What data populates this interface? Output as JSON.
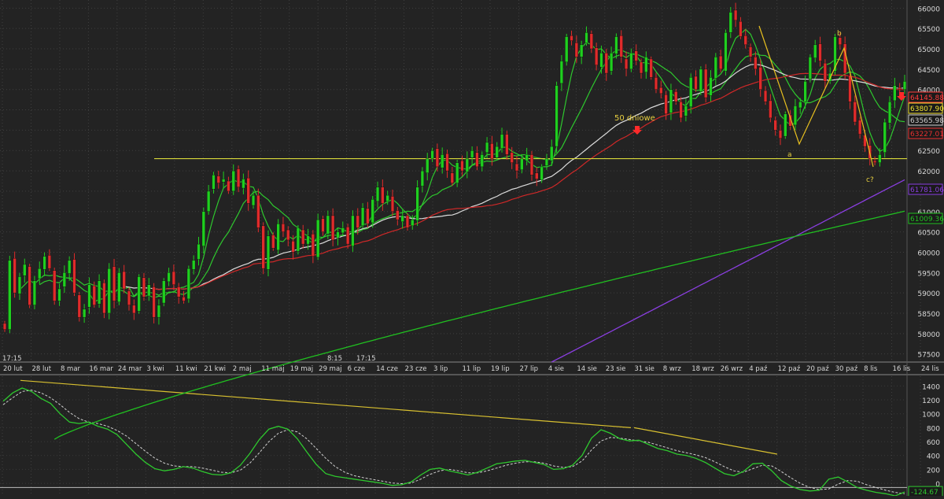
{
  "chart_data": [
    {
      "type": "candlestick",
      "price_axis": {
        "ticks": [
          57500,
          58000,
          58500,
          59000,
          59500,
          60000,
          60500,
          61000,
          61500,
          62000,
          62500,
          63000,
          63500,
          64000,
          64500,
          65000,
          65500,
          66000
        ],
        "ylim": [
          57300,
          66200
        ]
      },
      "date_labels": [
        "20 lut",
        "28 lut",
        "8 mar",
        "16 mar",
        "24 mar",
        "3 kwi",
        "11 kwi",
        "21 kwi",
        "2 maj",
        "11 maj",
        "19 maj",
        "29 maj",
        "6 cze",
        "14 cze",
        "23 cze",
        "3 lip",
        "11 lip",
        "19 lip",
        "27 lip",
        "4 sie",
        "14 sie",
        "23 sie",
        "31 sie",
        "8 wrz",
        "18 wrz",
        "26 wrz",
        "4 paź",
        "12 paź",
        "20 paź",
        "30 paź",
        "8 lis",
        "16 lis",
        "24 lis"
      ],
      "time_labels": [
        "17:15",
        "8:15",
        "17:15"
      ],
      "support_level": 62300,
      "close_series": [
        58100,
        59800,
        59000,
        59400,
        59700,
        58700,
        59300,
        59600,
        59900,
        59600,
        58800,
        59100,
        59500,
        59800,
        59000,
        58400,
        58600,
        59200,
        58700,
        59300,
        58500,
        59600,
        58800,
        59500,
        59100,
        58700,
        58500,
        59400,
        58900,
        59200,
        58400,
        58700,
        59300,
        59500,
        59200,
        58900,
        58800,
        59600,
        59800,
        60200,
        61000,
        61500,
        61900,
        61700,
        61800,
        61500,
        62000,
        61600,
        61800,
        61200,
        61400,
        60600,
        59600,
        60400,
        60100,
        60700,
        60500,
        60300,
        60000,
        60600,
        60200,
        60400,
        59900,
        60800,
        60500,
        60900,
        60300,
        60500,
        60600,
        60200,
        60900,
        60600,
        61100,
        60700,
        61300,
        61600,
        61200,
        61400,
        61000,
        60800,
        60900,
        60600,
        60800,
        61600,
        62000,
        62300,
        62500,
        62100,
        62400,
        62000,
        61700,
        62200,
        62000,
        62300,
        62500,
        62100,
        62400,
        62700,
        62300,
        62600,
        62900,
        62400,
        62200,
        62000,
        62300,
        62400,
        61900,
        61800,
        62100,
        62300,
        62600,
        64100,
        64700,
        65300,
        65200,
        64800,
        65100,
        65400,
        65000,
        64600,
        64900,
        64400,
        64900,
        65300,
        64800,
        64500,
        64900,
        64700,
        64400,
        64800,
        64300,
        64000,
        63900,
        63400,
        64000,
        63700,
        63300,
        63600,
        64300,
        64000,
        64500,
        63800,
        64300,
        64800,
        64500,
        65400,
        65900,
        65700,
        65300,
        65100,
        64800,
        64500,
        64000,
        63700,
        63300,
        63000,
        62800,
        63400,
        63100,
        63600,
        63700,
        64200,
        64800,
        65100,
        64700,
        64200,
        64400,
        65300,
        65100,
        64400,
        63700,
        63200,
        62900,
        62600,
        62300,
        62200,
        62400,
        63200,
        63700,
        64100,
        64000,
        64200
      ],
      "overlays": [
        {
          "label": "64145.88",
          "last": 64145.88,
          "color": "#ff3b3b"
        },
        {
          "label": "63807.90",
          "last": 63807.9,
          "color": "#f0e030"
        },
        {
          "label": "63565.98",
          "last": 63565.98,
          "color": "#cfcfcf"
        },
        {
          "label": "63227.01",
          "last": 63227.01,
          "color": "#e83030"
        },
        {
          "label": "61781.06",
          "last": 61781.06,
          "color": "#8a3ee0"
        },
        {
          "label": "61009.36",
          "last": 61009.36,
          "color": "#20c020"
        }
      ],
      "annotations": [
        "50 dniowe",
        "a",
        "b",
        "c?"
      ]
    },
    {
      "type": "line",
      "y_ticks": [
        0,
        200,
        400,
        600,
        800,
        1000,
        1200,
        1400
      ],
      "ylim": [
        -180,
        1540
      ],
      "last_label": "-124.67",
      "oscillator": [
        1180,
        1300,
        1370,
        1320,
        1220,
        1150,
        1000,
        880,
        860,
        880,
        820,
        780,
        700,
        560,
        420,
        300,
        210,
        180,
        200,
        240,
        220,
        170,
        130,
        120,
        150,
        260,
        430,
        630,
        780,
        820,
        780,
        640,
        450,
        270,
        140,
        100,
        80,
        60,
        40,
        20,
        0,
        -30,
        -20,
        20,
        120,
        200,
        220,
        180,
        150,
        120,
        160,
        220,
        280,
        300,
        320,
        330,
        300,
        270,
        200,
        210,
        260,
        400,
        650,
        770,
        720,
        640,
        610,
        620,
        560,
        500,
        470,
        420,
        400,
        360,
        300,
        220,
        140,
        110,
        170,
        280,
        290,
        180,
        40,
        -40,
        -90,
        -110,
        -100,
        60,
        90,
        20,
        -60,
        -100,
        -130,
        -150,
        -180,
        -124.67
      ],
      "signal": [
        1130,
        1230,
        1320,
        1340,
        1300,
        1230,
        1130,
        1020,
        930,
        880,
        860,
        820,
        760,
        680,
        570,
        460,
        360,
        290,
        250,
        240,
        240,
        220,
        190,
        160,
        150,
        190,
        290,
        440,
        600,
        720,
        770,
        740,
        640,
        500,
        360,
        240,
        160,
        110,
        80,
        55,
        30,
        5,
        -5,
        5,
        60,
        130,
        180,
        200,
        180,
        150,
        150,
        180,
        220,
        260,
        290,
        310,
        310,
        290,
        250,
        230,
        240,
        320,
        480,
        610,
        660,
        650,
        630,
        610,
        590,
        550,
        510,
        470,
        440,
        410,
        370,
        310,
        240,
        180,
        160,
        210,
        260,
        250,
        170,
        80,
        0,
        -60,
        -90,
        -80,
        -10,
        40,
        30,
        -20,
        -60,
        -100,
        -130,
        -150
      ]
    }
  ]
}
